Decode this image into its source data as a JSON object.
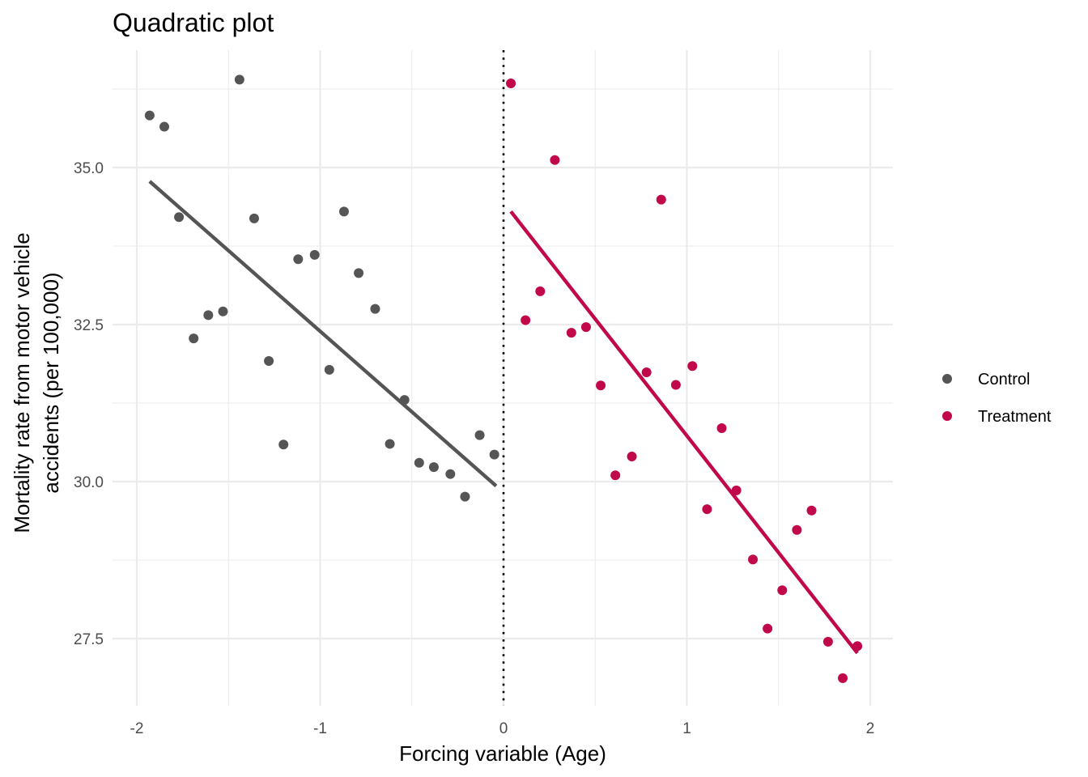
{
  "chart_data": {
    "type": "scatter",
    "title": "Quadratic plot",
    "xlabel": "Forcing variable (Age)",
    "ylabel_lines": [
      "Mortality rate from motor vehicle",
      "accidents (per 100,000)"
    ],
    "xlim": [
      -2.05,
      2.12
    ],
    "ylim": [
      26.55,
      37.1
    ],
    "x_ticks": [
      -2,
      -1,
      0,
      1,
      2
    ],
    "x_tick_labels": [
      "-2",
      "-1",
      "0",
      "1",
      "2"
    ],
    "y_ticks": [
      27.5,
      30.0,
      32.5,
      35.0
    ],
    "y_tick_labels": [
      "27.5",
      "30.0",
      "32.5",
      "35.0"
    ],
    "grid": true,
    "cutoff": 0,
    "legend_position": "right",
    "series": [
      {
        "name": "Control",
        "color": "#555555",
        "points": [
          [
            -1.93,
            35.83
          ],
          [
            -1.85,
            35.65
          ],
          [
            -1.77,
            34.21
          ],
          [
            -1.69,
            32.28
          ],
          [
            -1.61,
            32.65
          ],
          [
            -1.53,
            32.71
          ],
          [
            -1.44,
            36.4
          ],
          [
            -1.36,
            34.19
          ],
          [
            -1.28,
            31.92
          ],
          [
            -1.2,
            30.59
          ],
          [
            -1.12,
            33.54
          ],
          [
            -1.03,
            33.61
          ],
          [
            -0.95,
            31.78
          ],
          [
            -0.87,
            34.3
          ],
          [
            -0.79,
            33.32
          ],
          [
            -0.7,
            32.75
          ],
          [
            -0.62,
            30.6
          ],
          [
            -0.54,
            31.3
          ],
          [
            -0.46,
            30.3
          ],
          [
            -0.38,
            30.23
          ],
          [
            -0.29,
            30.12
          ],
          [
            -0.21,
            29.76
          ],
          [
            -0.13,
            30.74
          ],
          [
            -0.05,
            30.43
          ]
        ],
        "fit": [
          [
            -1.93,
            34.78
          ],
          [
            -0.04,
            29.93
          ]
        ]
      },
      {
        "name": "Treatment",
        "color": "#c0084a",
        "points": [
          [
            0.04,
            36.34
          ],
          [
            0.12,
            32.57
          ],
          [
            0.2,
            33.03
          ],
          [
            0.28,
            35.12
          ],
          [
            0.37,
            32.37
          ],
          [
            0.45,
            32.46
          ],
          [
            0.53,
            31.53
          ],
          [
            0.61,
            30.1
          ],
          [
            0.7,
            30.4
          ],
          [
            0.78,
            31.74
          ],
          [
            0.86,
            34.49
          ],
          [
            0.94,
            31.54
          ],
          [
            1.03,
            31.84
          ],
          [
            1.11,
            29.56
          ],
          [
            1.19,
            30.85
          ],
          [
            1.27,
            29.86
          ],
          [
            1.36,
            28.76
          ],
          [
            1.44,
            27.66
          ],
          [
            1.52,
            28.27
          ],
          [
            1.6,
            29.23
          ],
          [
            1.68,
            29.54
          ],
          [
            1.77,
            27.45
          ],
          [
            1.85,
            26.87
          ],
          [
            1.93,
            27.38
          ]
        ],
        "fit": [
          [
            0.04,
            34.3
          ],
          [
            1.93,
            27.27
          ]
        ]
      }
    ]
  }
}
